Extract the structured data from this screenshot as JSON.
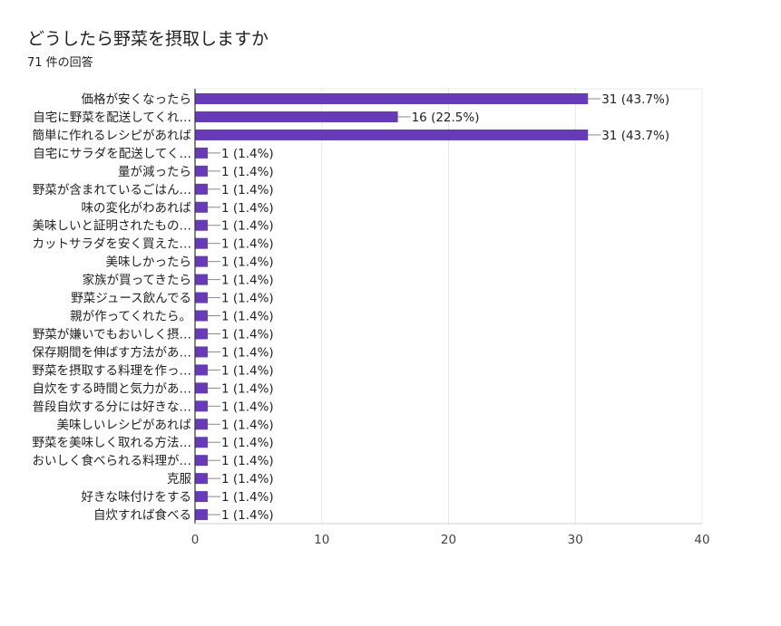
{
  "header": {
    "title": "どうしたら野菜を摂取しますか",
    "response_count": "71 件の回答"
  },
  "chart_data": {
    "type": "bar",
    "orientation": "horizontal",
    "categories": [
      "価格が安くなったら",
      "自宅に野菜を配送してくれ…",
      "簡単に作れるレシピがあれば",
      "自宅にサラダを配送してく…",
      "量が減ったら",
      "野菜が含まれているごはん…",
      "味の変化がわあれば",
      "美味しいと証明されたもの…",
      "カットサラダを安く買えた…",
      "美味しかったら",
      "家族が買ってきたら",
      "野菜ジュース飲んでる",
      "親が作ってくれたら。",
      "野菜が嫌いでもおいしく摂…",
      "保存期間を伸ばす方法があ…",
      "野菜を摂取する料理を作っ…",
      "自炊をする時間と気力があ…",
      "普段自炊する分には好きな…",
      "美味しいレシピがあれば",
      "野菜を美味しく取れる方法…",
      "おいしく食べられる料理が…",
      "克服",
      "好きな味付けをする",
      "自炊すれば食べる"
    ],
    "values": [
      31,
      16,
      31,
      1,
      1,
      1,
      1,
      1,
      1,
      1,
      1,
      1,
      1,
      1,
      1,
      1,
      1,
      1,
      1,
      1,
      1,
      1,
      1,
      1
    ],
    "data_labels": [
      "31 (43.7%)",
      "16 (22.5%)",
      "31 (43.7%)",
      "1 (1.4%)",
      "1 (1.4%)",
      "1 (1.4%)",
      "1 (1.4%)",
      "1 (1.4%)",
      "1 (1.4%)",
      "1 (1.4%)",
      "1 (1.4%)",
      "1 (1.4%)",
      "1 (1.4%)",
      "1 (1.4%)",
      "1 (1.4%)",
      "1 (1.4%)",
      "1 (1.4%)",
      "1 (1.4%)",
      "1 (1.4%)",
      "1 (1.4%)",
      "1 (1.4%)",
      "1 (1.4%)",
      "1 (1.4%)",
      "1 (1.4%)"
    ],
    "x_ticks": [
      0,
      10,
      20,
      30,
      40
    ],
    "xlim": [
      0,
      40
    ],
    "grid": true,
    "bar_color": "#673ab7",
    "grid_color": "#e8e8e8",
    "leader_color": "#888888"
  }
}
